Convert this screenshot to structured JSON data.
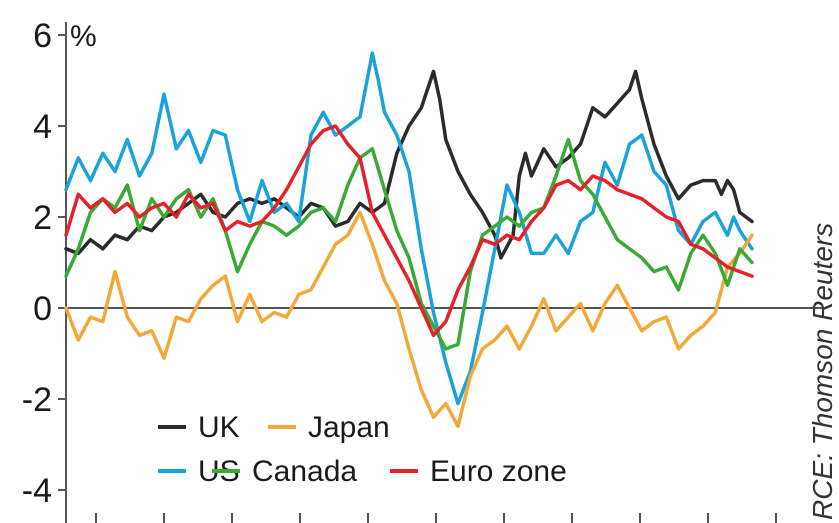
{
  "chart_data": {
    "type": "line",
    "title": "",
    "ylabel": "%",
    "xlabel": "",
    "ylim": [
      -4,
      6
    ],
    "yticks": [
      {
        "value": 6,
        "label": "6"
      },
      {
        "value": 4,
        "label": "4"
      },
      {
        "value": 2,
        "label": "2"
      },
      {
        "value": 0,
        "label": "0"
      },
      {
        "value": -2,
        "label": "-2"
      },
      {
        "value": -4,
        "label": "-4"
      }
    ],
    "xlim": [
      0,
      110
    ],
    "x_tick_count": 11,
    "grid": false,
    "legend_position": "bottom-left",
    "source": "RCE: Thomson Reuters",
    "series": [
      {
        "name": "UK",
        "color": "#2b2b2b",
        "points": [
          [
            0,
            1.3
          ],
          [
            2,
            1.2
          ],
          [
            4,
            1.5
          ],
          [
            6,
            1.3
          ],
          [
            8,
            1.6
          ],
          [
            10,
            1.5
          ],
          [
            12,
            1.8
          ],
          [
            14,
            1.7
          ],
          [
            16,
            2.0
          ],
          [
            18,
            2.1
          ],
          [
            20,
            2.3
          ],
          [
            22,
            2.5
          ],
          [
            24,
            2.1
          ],
          [
            26,
            2.0
          ],
          [
            28,
            2.3
          ],
          [
            30,
            2.4
          ],
          [
            32,
            2.3
          ],
          [
            34,
            2.4
          ],
          [
            36,
            2.2
          ],
          [
            38,
            2.0
          ],
          [
            40,
            2.3
          ],
          [
            42,
            2.2
          ],
          [
            44,
            1.8
          ],
          [
            46,
            1.9
          ],
          [
            48,
            2.3
          ],
          [
            50,
            2.1
          ],
          [
            52,
            2.3
          ],
          [
            54,
            3.4
          ],
          [
            56,
            4.0
          ],
          [
            58,
            4.4
          ],
          [
            60,
            5.2
          ],
          [
            61,
            4.6
          ],
          [
            62,
            3.7
          ],
          [
            64,
            3.0
          ],
          [
            66,
            2.5
          ],
          [
            68,
            2.1
          ],
          [
            70,
            1.6
          ],
          [
            71,
            1.1
          ],
          [
            73,
            1.6
          ],
          [
            74,
            2.9
          ],
          [
            75,
            3.4
          ],
          [
            76,
            2.9
          ],
          [
            78,
            3.5
          ],
          [
            80,
            3.1
          ],
          [
            82,
            3.3
          ],
          [
            84,
            3.6
          ],
          [
            86,
            4.4
          ],
          [
            88,
            4.2
          ],
          [
            90,
            4.5
          ],
          [
            92,
            4.8
          ],
          [
            93,
            5.2
          ],
          [
            94,
            4.6
          ],
          [
            96,
            3.6
          ],
          [
            98,
            2.9
          ],
          [
            100,
            2.4
          ],
          [
            102,
            2.7
          ],
          [
            104,
            2.8
          ],
          [
            106,
            2.8
          ],
          [
            107,
            2.5
          ],
          [
            108,
            2.8
          ],
          [
            109,
            2.6
          ],
          [
            110,
            2.1
          ],
          [
            112,
            1.9
          ]
        ]
      },
      {
        "name": "US",
        "color": "#1aa3d9",
        "points": [
          [
            0,
            2.6
          ],
          [
            2,
            3.3
          ],
          [
            4,
            2.8
          ],
          [
            6,
            3.4
          ],
          [
            8,
            3.0
          ],
          [
            10,
            3.7
          ],
          [
            12,
            2.9
          ],
          [
            14,
            3.4
          ],
          [
            16,
            4.7
          ],
          [
            18,
            3.5
          ],
          [
            20,
            3.9
          ],
          [
            22,
            3.2
          ],
          [
            24,
            3.9
          ],
          [
            26,
            3.8
          ],
          [
            28,
            2.6
          ],
          [
            30,
            1.9
          ],
          [
            32,
            2.8
          ],
          [
            34,
            2.1
          ],
          [
            36,
            2.3
          ],
          [
            38,
            1.9
          ],
          [
            40,
            3.8
          ],
          [
            42,
            4.3
          ],
          [
            44,
            3.8
          ],
          [
            46,
            4.0
          ],
          [
            48,
            4.2
          ],
          [
            50,
            5.6
          ],
          [
            51,
            5.0
          ],
          [
            52,
            4.3
          ],
          [
            54,
            3.8
          ],
          [
            56,
            3.0
          ],
          [
            58,
            1.3
          ],
          [
            60,
            -0.1
          ],
          [
            62,
            -1.2
          ],
          [
            64,
            -2.1
          ],
          [
            66,
            -1.4
          ],
          [
            68,
            -0.1
          ],
          [
            70,
            1.3
          ],
          [
            72,
            2.7
          ],
          [
            74,
            2.1
          ],
          [
            76,
            1.2
          ],
          [
            78,
            1.2
          ],
          [
            80,
            1.6
          ],
          [
            82,
            1.2
          ],
          [
            84,
            1.9
          ],
          [
            86,
            2.1
          ],
          [
            88,
            3.2
          ],
          [
            90,
            2.7
          ],
          [
            92,
            3.6
          ],
          [
            94,
            3.8
          ],
          [
            96,
            3.0
          ],
          [
            98,
            2.7
          ],
          [
            100,
            1.7
          ],
          [
            102,
            1.4
          ],
          [
            104,
            1.9
          ],
          [
            106,
            2.1
          ],
          [
            108,
            1.6
          ],
          [
            109,
            2.0
          ],
          [
            110,
            1.7
          ],
          [
            112,
            1.3
          ]
        ]
      },
      {
        "name": "Japan",
        "color": "#f3a93a",
        "points": [
          [
            0,
            0.0
          ],
          [
            2,
            -0.7
          ],
          [
            4,
            -0.2
          ],
          [
            6,
            -0.3
          ],
          [
            8,
            0.8
          ],
          [
            10,
            -0.2
          ],
          [
            12,
            -0.6
          ],
          [
            14,
            -0.5
          ],
          [
            16,
            -1.1
          ],
          [
            18,
            -0.2
          ],
          [
            20,
            -0.3
          ],
          [
            22,
            0.2
          ],
          [
            24,
            0.5
          ],
          [
            26,
            0.7
          ],
          [
            28,
            -0.3
          ],
          [
            30,
            0.3
          ],
          [
            32,
            -0.3
          ],
          [
            34,
            -0.1
          ],
          [
            36,
            -0.2
          ],
          [
            38,
            0.3
          ],
          [
            40,
            0.4
          ],
          [
            42,
            0.9
          ],
          [
            44,
            1.4
          ],
          [
            46,
            1.6
          ],
          [
            48,
            2.1
          ],
          [
            50,
            1.4
          ],
          [
            52,
            0.6
          ],
          [
            54,
            0.1
          ],
          [
            56,
            -0.9
          ],
          [
            58,
            -1.8
          ],
          [
            60,
            -2.4
          ],
          [
            62,
            -2.1
          ],
          [
            64,
            -2.6
          ],
          [
            66,
            -1.5
          ],
          [
            68,
            -0.9
          ],
          [
            70,
            -0.7
          ],
          [
            72,
            -0.4
          ],
          [
            74,
            -0.9
          ],
          [
            76,
            -0.4
          ],
          [
            78,
            0.2
          ],
          [
            80,
            -0.5
          ],
          [
            82,
            -0.2
          ],
          [
            84,
            0.1
          ],
          [
            86,
            -0.5
          ],
          [
            88,
            0.1
          ],
          [
            90,
            0.5
          ],
          [
            92,
            0.0
          ],
          [
            94,
            -0.5
          ],
          [
            96,
            -0.3
          ],
          [
            98,
            -0.2
          ],
          [
            100,
            -0.9
          ],
          [
            102,
            -0.6
          ],
          [
            104,
            -0.4
          ],
          [
            106,
            -0.1
          ],
          [
            108,
            0.9
          ],
          [
            110,
            1.2
          ],
          [
            112,
            1.6
          ]
        ]
      },
      {
        "name": "Canada",
        "color": "#3aaa35",
        "points": [
          [
            0,
            0.7
          ],
          [
            2,
            1.3
          ],
          [
            4,
            2.1
          ],
          [
            6,
            2.4
          ],
          [
            8,
            2.2
          ],
          [
            10,
            2.7
          ],
          [
            12,
            1.7
          ],
          [
            14,
            2.4
          ],
          [
            16,
            2.0
          ],
          [
            18,
            2.4
          ],
          [
            20,
            2.6
          ],
          [
            22,
            2.0
          ],
          [
            24,
            2.4
          ],
          [
            26,
            1.7
          ],
          [
            28,
            0.8
          ],
          [
            30,
            1.4
          ],
          [
            32,
            1.9
          ],
          [
            34,
            1.8
          ],
          [
            36,
            1.6
          ],
          [
            38,
            1.8
          ],
          [
            40,
            2.1
          ],
          [
            42,
            2.2
          ],
          [
            44,
            1.9
          ],
          [
            46,
            2.7
          ],
          [
            48,
            3.3
          ],
          [
            50,
            3.5
          ],
          [
            52,
            2.6
          ],
          [
            54,
            1.7
          ],
          [
            56,
            1.1
          ],
          [
            58,
            0.1
          ],
          [
            60,
            -0.4
          ],
          [
            62,
            -0.9
          ],
          [
            64,
            -0.8
          ],
          [
            66,
            0.8
          ],
          [
            68,
            1.6
          ],
          [
            70,
            1.8
          ],
          [
            72,
            2.0
          ],
          [
            74,
            1.8
          ],
          [
            76,
            2.1
          ],
          [
            78,
            2.2
          ],
          [
            80,
            2.9
          ],
          [
            82,
            3.7
          ],
          [
            84,
            2.8
          ],
          [
            86,
            2.5
          ],
          [
            88,
            2.0
          ],
          [
            90,
            1.5
          ],
          [
            92,
            1.3
          ],
          [
            94,
            1.1
          ],
          [
            96,
            0.8
          ],
          [
            98,
            0.9
          ],
          [
            100,
            0.4
          ],
          [
            102,
            1.2
          ],
          [
            104,
            1.6
          ],
          [
            106,
            1.2
          ],
          [
            108,
            0.5
          ],
          [
            110,
            1.3
          ],
          [
            112,
            1.0
          ]
        ]
      },
      {
        "name": "Euro zone",
        "color": "#e3222a",
        "points": [
          [
            0,
            1.6
          ],
          [
            2,
            2.5
          ],
          [
            4,
            2.2
          ],
          [
            6,
            2.4
          ],
          [
            8,
            2.1
          ],
          [
            10,
            2.3
          ],
          [
            12,
            2.0
          ],
          [
            14,
            2.2
          ],
          [
            16,
            2.3
          ],
          [
            18,
            2.0
          ],
          [
            20,
            2.5
          ],
          [
            22,
            2.2
          ],
          [
            24,
            2.3
          ],
          [
            26,
            1.7
          ],
          [
            28,
            1.9
          ],
          [
            30,
            1.8
          ],
          [
            32,
            1.9
          ],
          [
            34,
            2.2
          ],
          [
            36,
            2.6
          ],
          [
            38,
            3.1
          ],
          [
            40,
            3.6
          ],
          [
            42,
            3.9
          ],
          [
            44,
            4.0
          ],
          [
            46,
            3.6
          ],
          [
            48,
            3.3
          ],
          [
            50,
            2.1
          ],
          [
            52,
            1.6
          ],
          [
            54,
            1.1
          ],
          [
            56,
            0.6
          ],
          [
            58,
            0.0
          ],
          [
            60,
            -0.6
          ],
          [
            62,
            -0.3
          ],
          [
            64,
            0.4
          ],
          [
            66,
            0.9
          ],
          [
            68,
            1.5
          ],
          [
            70,
            1.4
          ],
          [
            72,
            1.6
          ],
          [
            74,
            1.5
          ],
          [
            76,
            1.9
          ],
          [
            78,
            2.2
          ],
          [
            80,
            2.7
          ],
          [
            82,
            2.8
          ],
          [
            84,
            2.6
          ],
          [
            86,
            2.9
          ],
          [
            88,
            2.8
          ],
          [
            90,
            2.6
          ],
          [
            92,
            2.5
          ],
          [
            94,
            2.4
          ],
          [
            96,
            2.2
          ],
          [
            98,
            2.0
          ],
          [
            100,
            1.9
          ],
          [
            102,
            1.4
          ],
          [
            104,
            1.3
          ],
          [
            106,
            1.1
          ],
          [
            108,
            0.9
          ],
          [
            110,
            0.8
          ],
          [
            112,
            0.7
          ]
        ]
      }
    ]
  }
}
